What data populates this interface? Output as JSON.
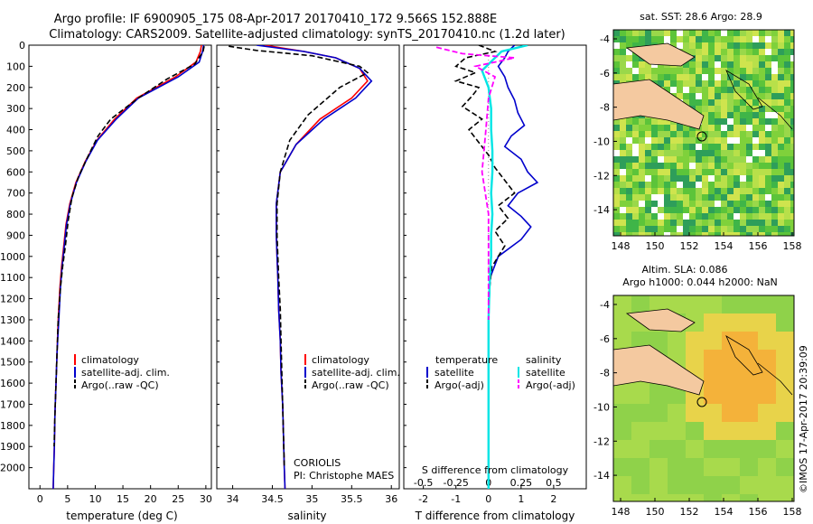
{
  "header": {
    "line1": "Argo profile: IF 6900905_175 08-Apr-2017 20170410_172 9.566S 152.888E",
    "line2": "Climatology: CARS2009. Satellite-adjusted climatology: synTS_20170410.nc (1.2d later)"
  },
  "colors": {
    "climatology": "#ff0000",
    "satellite": "#0000cc",
    "argo": "#000000",
    "salinity_satellite": "#00e5e5",
    "salinity_argo": "#ff00ff"
  },
  "depth_axis": {
    "ticks": [
      "0",
      "100",
      "200",
      "300",
      "400",
      "500",
      "600",
      "700",
      "800",
      "900",
      "1000",
      "1100",
      "1200",
      "1300",
      "1400",
      "1500",
      "1600",
      "1700",
      "1800",
      "1900",
      "2000"
    ]
  },
  "panels": {
    "temperature": {
      "xlabel": "temperature (deg C)",
      "xticks": [
        "0",
        "5",
        "10",
        "15",
        "20",
        "25",
        "30"
      ],
      "legend": [
        "climatology",
        "satellite-adj. clim.",
        "Argo(..raw -QC)"
      ]
    },
    "salinity": {
      "xlabel": "salinity",
      "xticks": [
        "34",
        "34.5",
        "35",
        "35.5",
        "36"
      ],
      "legend": [
        "climatology",
        "satellite-adj. clim.",
        "Argo(..raw -QC)"
      ],
      "center_label": "CORIOLIS",
      "pi_label": "PI: Christophe MAES"
    },
    "difference": {
      "xlabel": "T difference from climatology",
      "top_label": "S difference from climatology",
      "s_ticks": [
        "-0.5",
        "-0.25",
        "0",
        "0.25",
        "0.5"
      ],
      "t_ticks": [
        "-2",
        "-1",
        "0",
        "1",
        "2"
      ],
      "legend_temp_title": "temperature",
      "legend_sal_title": "salinity",
      "legend_temp": [
        "satellite",
        "Argo(-adj)"
      ],
      "legend_sal": [
        "satellite",
        "Argo(-adj)"
      ]
    }
  },
  "maps": {
    "sst": {
      "title": "sat. SST: 28.6 Argo: 28.9",
      "yticks": [
        "-4",
        "-6",
        "-8",
        "-10",
        "-12",
        "-14"
      ],
      "xticks": [
        "148",
        "150",
        "152",
        "154",
        "156",
        "158"
      ]
    },
    "sla": {
      "title1": "Altim. SLA: 0.086",
      "title2": "Argo h1000: 0.044 h2000: NaN",
      "yticks": [
        "-4",
        "-6",
        "-8",
        "-10",
        "-12",
        "-14"
      ],
      "xticks": [
        "148",
        "150",
        "152",
        "154",
        "156",
        "158"
      ]
    },
    "footer_vertical": "©IMOS 17-Apr-2017 20:39:09"
  },
  "chart_data": [
    {
      "type": "line",
      "title": "",
      "xlabel": "temperature (deg C)",
      "ylabel": "",
      "xlim": [
        -2,
        31
      ],
      "ylim": [
        2100,
        0
      ],
      "series": [
        {
          "name": "climatology",
          "x": [
            29.2,
            29.0,
            28.2,
            24.5,
            17.5,
            13.5,
            10.3,
            8.2,
            6.5,
            5.4,
            4.7,
            4.3,
            3.9,
            3.6,
            3.3,
            3.1,
            2.9,
            2.7,
            2.6,
            2.5,
            2.4,
            2.35
          ],
          "y": [
            0,
            30,
            80,
            150,
            250,
            350,
            450,
            550,
            650,
            750,
            850,
            950,
            1050,
            1150,
            1300,
            1450,
            1600,
            1750,
            1900,
            2000,
            2100,
            2130
          ]
        },
        {
          "name": "satellite-adj. clim.",
          "x": [
            29.6,
            29.4,
            28.8,
            25.0,
            17.8,
            13.8,
            10.4,
            8.3,
            6.6,
            5.5,
            4.8,
            4.4,
            4.0,
            3.7,
            3.4,
            3.1,
            2.9,
            2.7,
            2.6,
            2.5,
            2.4,
            2.35
          ],
          "y": [
            0,
            30,
            80,
            150,
            250,
            350,
            450,
            550,
            650,
            750,
            850,
            950,
            1050,
            1150,
            1300,
            1450,
            1600,
            1750,
            1900,
            2000,
            2100,
            2130
          ]
        },
        {
          "name": "Argo(..raw -QC)",
          "x": [
            29.7,
            29.5,
            28.0,
            23.0,
            17.8,
            12.8,
            10.5,
            8.8,
            7.0,
            5.8,
            5.1,
            4.6,
            4.1,
            3.7,
            3.3,
            3.1,
            2.9,
            2.7,
            2.55
          ],
          "y": [
            5,
            30,
            90,
            160,
            250,
            350,
            430,
            520,
            620,
            720,
            830,
            950,
            1050,
            1150,
            1300,
            1450,
            1600,
            1750,
            1900
          ]
        }
      ]
    },
    {
      "type": "line",
      "title": "",
      "xlabel": "salinity",
      "ylabel": "",
      "xlim": [
        33.8,
        36.1
      ],
      "ylim": [
        2100,
        0
      ],
      "series": [
        {
          "name": "climatology",
          "x": [
            34.4,
            34.9,
            35.3,
            35.6,
            35.7,
            35.5,
            35.1,
            34.8,
            34.6,
            34.55,
            34.55,
            34.56,
            34.57,
            34.58,
            34.6,
            34.61,
            34.63,
            34.64,
            34.65,
            34.66,
            34.66
          ],
          "y": [
            0,
            30,
            60,
            110,
            170,
            250,
            350,
            470,
            600,
            750,
            900,
            1000,
            1100,
            1250,
            1400,
            1550,
            1700,
            1850,
            2000,
            2100,
            2130
          ]
        },
        {
          "name": "satellite-adj. clim.",
          "x": [
            34.3,
            34.9,
            35.3,
            35.6,
            35.75,
            35.55,
            35.15,
            34.8,
            34.6,
            34.55,
            34.55,
            34.56,
            34.57,
            34.58,
            34.6,
            34.61,
            34.63,
            34.64,
            34.65,
            34.66,
            34.66
          ],
          "y": [
            0,
            30,
            60,
            110,
            170,
            250,
            350,
            470,
            600,
            750,
            900,
            1000,
            1100,
            1250,
            1400,
            1550,
            1700,
            1850,
            2000,
            2100,
            2130
          ]
        },
        {
          "name": "Argo(..raw -QC)",
          "x": [
            33.95,
            34.3,
            35.0,
            35.6,
            35.7,
            35.35,
            34.95,
            34.72,
            34.6,
            34.56,
            34.56,
            34.57,
            34.58,
            34.6,
            34.61,
            34.62,
            34.63,
            34.64,
            34.65
          ],
          "y": [
            5,
            25,
            50,
            100,
            130,
            200,
            330,
            450,
            600,
            750,
            900,
            1000,
            1100,
            1250,
            1400,
            1550,
            1700,
            1850,
            1990
          ]
        }
      ]
    },
    {
      "type": "line",
      "title": "",
      "xlabel": "T difference from climatology",
      "ylabel": "",
      "xlim": [
        -2.6,
        3.0
      ],
      "ylim": [
        2100,
        0
      ],
      "series": [
        {
          "name": "temperature satellite",
          "axis": "T",
          "x": [
            0.8,
            0.6,
            0.5,
            0.3,
            0.5,
            0.6,
            0.8,
            0.9,
            1.1,
            0.7,
            0.5,
            1.0,
            1.2,
            1.5,
            0.9,
            0.6,
            1.0,
            1.3,
            1.0,
            0.3,
            0.05,
            0.0,
            0.0,
            0.0,
            0.0,
            0.0
          ],
          "y": [
            0,
            30,
            60,
            100,
            150,
            200,
            260,
            320,
            380,
            430,
            480,
            540,
            600,
            650,
            700,
            760,
            810,
            860,
            920,
            1000,
            1100,
            1300,
            1500,
            1700,
            1900,
            2100
          ]
        },
        {
          "name": "temperature Argo(-adj)",
          "axis": "T",
          "x": [
            -0.3,
            0.2,
            -0.7,
            -1.0,
            -0.4,
            -1.0,
            -0.3,
            -0.5,
            -0.8,
            -0.2,
            -0.6,
            -0.3,
            0.0,
            0.2,
            0.5,
            0.8,
            0.3,
            0.6,
            0.2,
            0.5,
            0.1,
            0.0,
            0.0,
            0.0
          ],
          "y": [
            0,
            30,
            60,
            100,
            130,
            170,
            200,
            240,
            290,
            350,
            400,
            460,
            520,
            580,
            640,
            700,
            760,
            820,
            880,
            950,
            1050,
            1200,
            1500,
            1900
          ]
        },
        {
          "name": "salinity satellite",
          "axis": "S",
          "x": [
            0.3,
            0.1,
            0.05,
            -0.05,
            0.0,
            0.02,
            0.02,
            0.03,
            0.03,
            0.02,
            0.03,
            0.02,
            0.02,
            0.01,
            0.0,
            0.0,
            0.0
          ],
          "y": [
            0,
            30,
            60,
            120,
            200,
            300,
            400,
            500,
            600,
            700,
            800,
            900,
            1000,
            1100,
            1300,
            1600,
            2100
          ]
        },
        {
          "name": "salinity Argo(-adj)",
          "axis": "S",
          "x": [
            -0.4,
            -0.2,
            0.2,
            -0.1,
            0.05,
            0.0,
            -0.02,
            -0.05,
            0.0,
            0.0,
            0.0
          ],
          "y": [
            10,
            40,
            60,
            100,
            150,
            250,
            400,
            600,
            800,
            1000,
            1300
          ]
        }
      ]
    }
  ]
}
